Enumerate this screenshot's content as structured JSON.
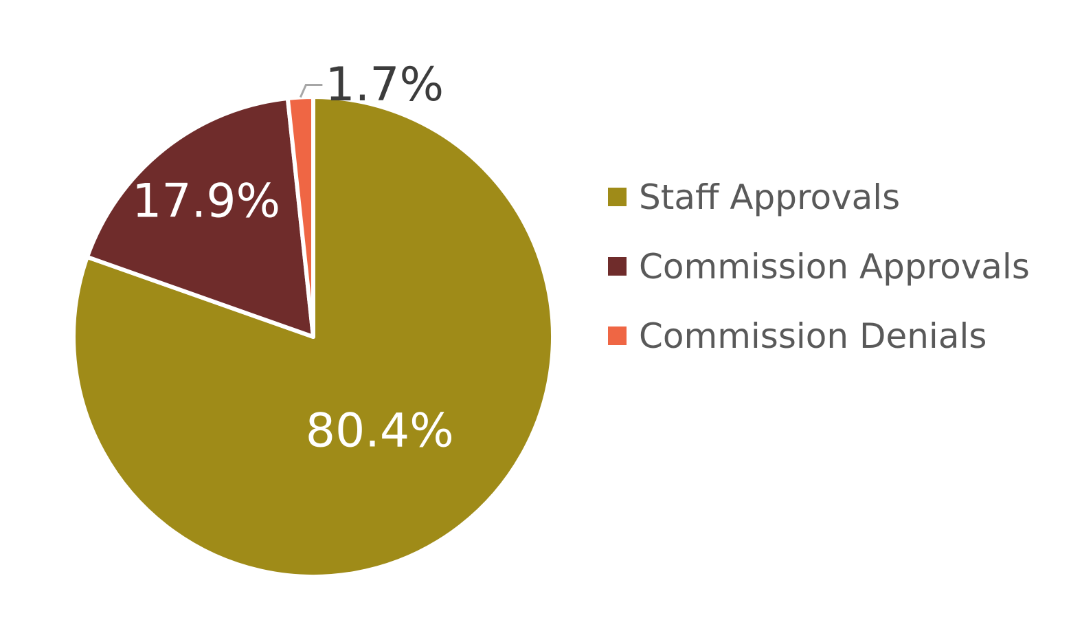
{
  "chart_data": {
    "type": "pie",
    "title": "",
    "categories": [
      "Staff Approvals",
      "Commission Approvals",
      "Commission Denials"
    ],
    "values": [
      80.4,
      17.9,
      1.7
    ],
    "value_labels": [
      "80.4%",
      "17.9%",
      "1.7%"
    ],
    "colors": [
      "#9F8B18",
      "#6F2C2B",
      "#EF6644"
    ],
    "legend": "right",
    "start_angle": "12 o'clock",
    "direction": "clockwise"
  },
  "legend": {
    "items": [
      {
        "label": "Staff Approvals",
        "color": "#9F8B18"
      },
      {
        "label": "Commission Approvals",
        "color": "#6F2C2B"
      },
      {
        "label": "Commission Denials",
        "color": "#EF6644"
      }
    ]
  }
}
